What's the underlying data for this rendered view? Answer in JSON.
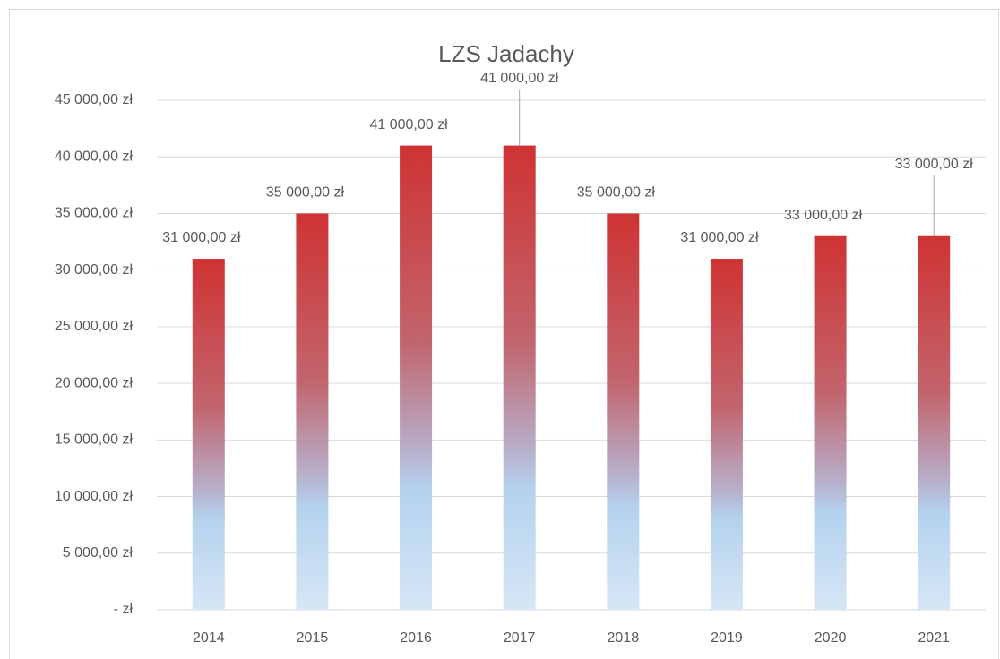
{
  "chart_data": {
    "type": "bar",
    "title": "LZS Jadachy",
    "categories": [
      "2014",
      "2015",
      "2016",
      "2017",
      "2018",
      "2019",
      "2020",
      "2021"
    ],
    "values": [
      31000,
      35000,
      41000,
      41000,
      35000,
      31000,
      33000,
      33000
    ],
    "value_labels": [
      "31 000,00 zł",
      "35 000,00 zł",
      "41 000,00 zł",
      "41 000,00 zł",
      "35 000,00 zł",
      "31 000,00 zł",
      "33 000,00 zł",
      "33 000,00 zł"
    ],
    "color": "#cf3333",
    "ylim": [
      0,
      45000
    ],
    "yticks": [
      {
        "value": 0,
        "label": "-   zł"
      },
      {
        "value": 5000,
        "label": "5 000,00 zł"
      },
      {
        "value": 10000,
        "label": "10 000,00 zł"
      },
      {
        "value": 15000,
        "label": "15 000,00 zł"
      },
      {
        "value": 20000,
        "label": "20 000,00 zł"
      },
      {
        "value": 25000,
        "label": "25 000,00 zł"
      },
      {
        "value": 30000,
        "label": "30 000,00 zł"
      },
      {
        "value": 35000,
        "label": "35 000,00 zł"
      },
      {
        "value": 40000,
        "label": "40 000,00 zł"
      },
      {
        "value": 45000,
        "label": "45 000,00 zł"
      }
    ],
    "grid": true
  }
}
